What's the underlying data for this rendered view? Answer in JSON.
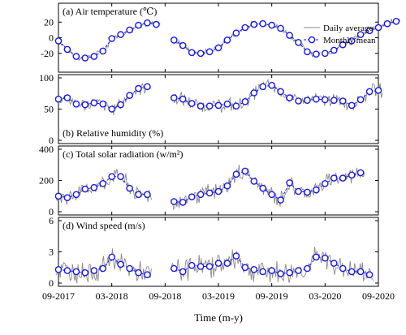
{
  "chart_data": {
    "type": "line",
    "xlabel": "Time (m-y)",
    "x_ticks": [
      "09-2017",
      "03-2018",
      "09-2018",
      "03-2019",
      "09-2019",
      "03-2020",
      "09-2020"
    ],
    "x_range": [
      "2017-09",
      "2020-09"
    ],
    "legend": {
      "placement": "top-right",
      "entries": [
        "Daily average",
        "Monthly mean"
      ]
    },
    "colors": {
      "daily": "#8a8a8a",
      "monthly": "#1a1ad6"
    },
    "panels": [
      {
        "id": "a",
        "title": "(a) Air temperature (℃)",
        "ylim": [
          -40,
          40
        ],
        "yticks": [
          -20,
          0,
          20
        ],
        "segments": [
          {
            "start": "2017-09",
            "values": [
              -4,
              -15,
              -24,
              -26,
              -24,
              -17,
              -1,
              4,
              10,
              16,
              19,
              17
            ]
          },
          {
            "start": "2018-10",
            "values": [
              -3,
              -10,
              -19,
              -20,
              -18,
              -13,
              -3,
              6,
              13,
              17,
              18,
              16,
              12,
              3,
              -6,
              -18,
              -21
            ]
          },
          {
            "start": "2020-03",
            "values": [
              -20,
              -16,
              -9,
              -4,
              4,
              9,
              13,
              18,
              21
            ]
          }
        ]
      },
      {
        "id": "b",
        "title": "(b) Relative humidity (%)",
        "ylim": [
          0,
          100
        ],
        "yticks": [
          0,
          50,
          100
        ],
        "segments": [
          {
            "start": "2017-09",
            "values": [
              66,
              68,
              58,
              57,
              60,
              58,
              50,
              57,
              72,
              83,
              86
            ]
          },
          {
            "start": "2018-10",
            "values": [
              68,
              66,
              59,
              55,
              55,
              56,
              58,
              55,
              62,
              76,
              86,
              88,
              78,
              68,
              63,
              64,
              66,
              65,
              64,
              63,
              56,
              65,
              78,
              80
            ]
          }
        ]
      },
      {
        "id": "c",
        "title": "(c) Total solar radiation (w/m²)",
        "ylim": [
          0,
          400
        ],
        "yticks": [
          0,
          200,
          400
        ],
        "segments": [
          {
            "start": "2017-09",
            "values": [
              100,
              90,
              110,
              145,
              155,
              180,
              225,
              225,
              150,
              110,
              110
            ]
          },
          {
            "start": "2018-10",
            "values": [
              65,
              60,
              95,
              110,
              120,
              130,
              165,
              240,
              260,
              195,
              150,
              110,
              75,
              185,
              130,
              125,
              140,
              180,
              215,
              215,
              235,
              250
            ]
          }
        ]
      },
      {
        "id": "d",
        "title": "(d) Wind speed (m/s)",
        "ylim": [
          0,
          6
        ],
        "yticks": [
          0,
          3,
          6
        ],
        "segments": [
          {
            "start": "2017-09",
            "values": [
              1.3,
              1.2,
              1.1,
              1.0,
              1.2,
              1.4,
              2.5,
              1.8,
              1.4,
              1.0,
              0.8
            ]
          },
          {
            "start": "2018-10",
            "values": [
              1.4,
              1.1,
              1.7,
              1.6,
              1.6,
              1.9,
              1.9,
              2.6,
              1.5,
              1.3,
              1.1,
              1.2,
              0.9,
              1.0,
              1.2,
              1.4,
              2.5,
              2.4,
              1.9,
              1.4,
              1.1,
              1.1,
              0.8
            ]
          }
        ]
      }
    ]
  }
}
